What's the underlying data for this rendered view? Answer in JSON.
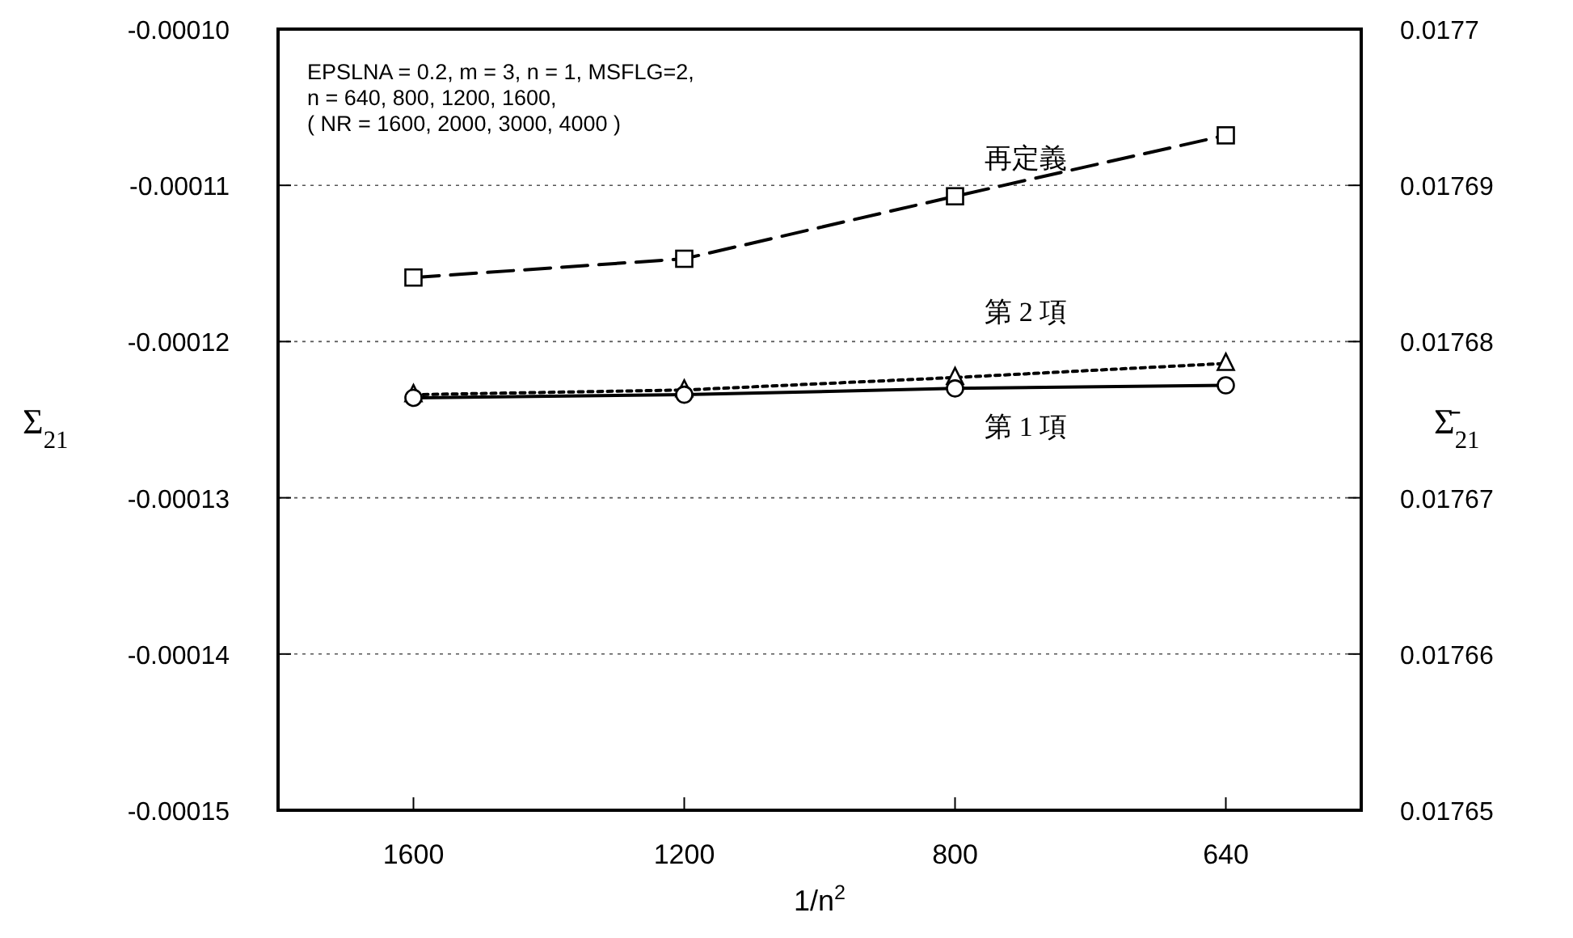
{
  "chart_data": {
    "type": "line",
    "xlabel": "1/n$^{2}$",
    "ylabel": "Σ$_{21}$",
    "y2label": "Σ̄$_{21}$",
    "annotations": [
      "EPSLNA = 0.2, m = 3, n = 1, MSFLG=2,",
      "n = 640, 800, 1200, 1600,",
      "( NR = 1600, 2000, 3000, 4000 )"
    ],
    "categories": [
      "1600",
      "1200",
      "800",
      "640"
    ],
    "ylim": [
      -0.00015,
      -0.0001
    ],
    "yticks": [
      -0.00015,
      -0.00014,
      -0.00013,
      -0.00012,
      -0.00011,
      {
        "value": -0.0001,
        "label": "-0.00010"
      }
    ],
    "y2lim": [
      0.01765,
      0.0177
    ],
    "y2ticks": [
      0.01765,
      0.01766,
      0.01767,
      0.01768,
      0.01769,
      0.0177
    ],
    "grid": "y",
    "series": [
      {
        "name": "再定義",
        "color": "#000000",
        "marker": "square",
        "line_style": "dashed",
        "values": [
          -0.0001159,
          -0.0001147,
          -0.0001107,
          -0.0001068
        ]
      },
      {
        "name": "第 2 項",
        "color": "#000000",
        "marker": "triangle",
        "line_style": "dotted",
        "values": [
          -0.0001234,
          -0.0001231,
          -0.0001223,
          -0.0001214
        ]
      },
      {
        "name": "第 1 項",
        "color": "#000000",
        "marker": "circle",
        "line_style": "solid",
        "values": [
          -0.0001236,
          -0.0001234,
          -0.000123,
          -0.0001228
        ]
      }
    ]
  }
}
